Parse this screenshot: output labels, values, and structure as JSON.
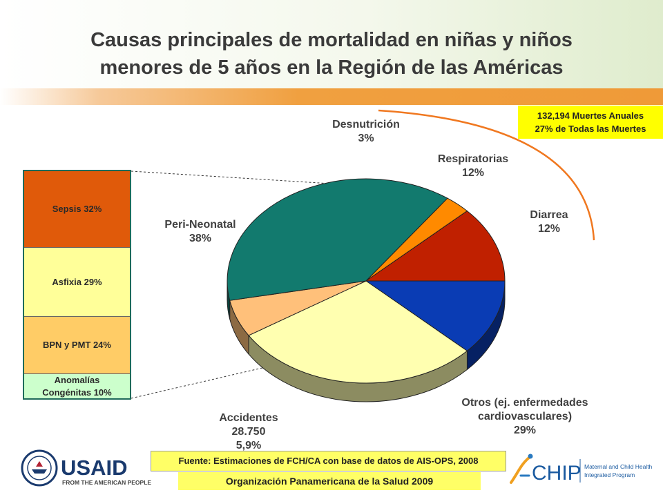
{
  "title_lines": [
    "Causas principales de mortalidad en niñas y niños",
    "menores de 5 años en la Región de las Américas"
  ],
  "deaths_note": [
    "132,194 Muertes Anuales",
    "27% de Todas las Muertes"
  ],
  "source_note": "Fuente: Estimaciones de FCH/CA  con base de datos de AIS-OPS, 2008",
  "org_note": "Organización Panamericana de la Salud 2009",
  "usaid_logo": {
    "text": "USAID",
    "tagline": "FROM THE AMERICAN PEOPLE"
  },
  "chip_logo": {
    "text": "CHIP",
    "tagline_lines": [
      "Maternal and Child Health",
      "Integrated Program"
    ]
  },
  "chart_data": {
    "type": "pie",
    "title": "Causas principales de mortalidad en niñas y niños menores de 5 años en la Región de las Américas",
    "slices": [
      {
        "label_lines": [
          "Diarrea",
          "12%"
        ],
        "value": 12,
        "color": "#0a3cb4"
      },
      {
        "label_lines": [
          "Otros (ej. enfermedades",
          "cardiovasculares)",
          "29%"
        ],
        "value": 29,
        "color": "#ffffb0"
      },
      {
        "label_lines": [
          "Accidentes",
          "28.750",
          "5,9%"
        ],
        "value": 5.9,
        "color": "#ffc07a"
      },
      {
        "label_lines": [
          "Peri-Neonatal",
          "38%"
        ],
        "value": 38,
        "color": "#127a6e"
      },
      {
        "label_lines": [
          "Desnutrición",
          "3%"
        ],
        "value": 3,
        "color": "#ff8a00"
      },
      {
        "label_lines": [
          "Respiratorias",
          "12%"
        ],
        "value": 12,
        "color": "#c02000"
      }
    ],
    "breakdown": {
      "of_slice": "Peri-Neonatal",
      "segments": [
        {
          "label_lines": [
            "Sepsis 32%"
          ],
          "value": 32,
          "color": "#e05a0a"
        },
        {
          "label_lines": [
            "Asfixia 29%"
          ],
          "value": 29,
          "color": "#ffff99"
        },
        {
          "label_lines": [
            "BPN y PMT 24%"
          ],
          "value": 24,
          "color": "#ffcc66"
        },
        {
          "label_lines": [
            "Anomalías",
            "Congénitas 10%"
          ],
          "value": 10,
          "color": "#ccffcc"
        }
      ]
    }
  }
}
